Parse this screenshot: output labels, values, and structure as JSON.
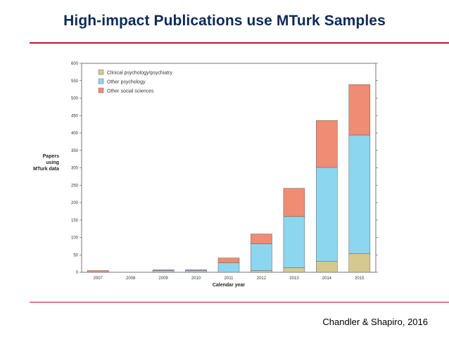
{
  "slide": {
    "title": "High-impact Publications use MTurk Samples",
    "citation": "Chandler & Shapiro, 2016",
    "accent_color": "#c8102e",
    "title_color": "#0d2a57"
  },
  "chart_data": {
    "type": "bar",
    "stacked": true,
    "categories": [
      "2007",
      "2008",
      "2009",
      "2010",
      "2011",
      "2012",
      "2013",
      "2014",
      "2015"
    ],
    "series": [
      {
        "name": "Clinical psychology/psychiatry",
        "color": "#d6c98f",
        "values": [
          0,
          0,
          0,
          0,
          0,
          5,
          13,
          31,
          54
        ]
      },
      {
        "name": "Other psychology",
        "color": "#8dd6f0",
        "values": [
          0,
          0,
          5,
          5,
          27,
          77,
          147,
          270,
          340
        ]
      },
      {
        "name": "Other social sciences",
        "color": "#ef8c73",
        "values": [
          5,
          0,
          2,
          2,
          14,
          28,
          81,
          135,
          145
        ]
      }
    ],
    "ylabel_lines": [
      "Papers",
      "using",
      "MTurk data"
    ],
    "xlabel": "Calendar year",
    "ylim": [
      0,
      600
    ],
    "yticks": [
      0,
      50,
      100,
      150,
      200,
      250,
      300,
      350,
      400,
      450,
      500,
      550,
      600
    ],
    "grid": false,
    "legend": "top-left"
  }
}
